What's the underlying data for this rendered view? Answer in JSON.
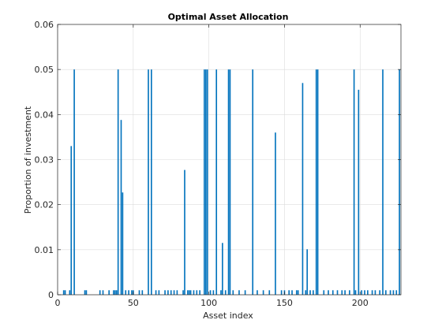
{
  "chart_data": {
    "type": "bar",
    "title": "Optimal Asset Allocation",
    "xlabel": "Asset index",
    "ylabel": "Proportion of investment",
    "xlim": [
      0,
      227
    ],
    "ylim": [
      0,
      0.06
    ],
    "xticks": [
      0,
      50,
      100,
      150,
      200
    ],
    "xtick_labels": [
      "0",
      "50",
      "100",
      "150",
      "200"
    ],
    "yticks": [
      0,
      0.01,
      0.02,
      0.03,
      0.04,
      0.05,
      0.06
    ],
    "ytick_labels": [
      "0",
      "0.01",
      "0.02",
      "0.03",
      "0.04",
      "0.05",
      "0.06"
    ],
    "grid": true,
    "bar_color": "#0072bd",
    "points": [
      {
        "x": 4,
        "y": 0.001
      },
      {
        "x": 5,
        "y": 0.001
      },
      {
        "x": 8,
        "y": 0.001
      },
      {
        "x": 9,
        "y": 0.033
      },
      {
        "x": 11,
        "y": 0.05
      },
      {
        "x": 18,
        "y": 0.001
      },
      {
        "x": 19,
        "y": 0.001
      },
      {
        "x": 28,
        "y": 0.001
      },
      {
        "x": 30,
        "y": 0.001
      },
      {
        "x": 34,
        "y": 0.001
      },
      {
        "x": 37,
        "y": 0.001
      },
      {
        "x": 38,
        "y": 0.001
      },
      {
        "x": 39,
        "y": 0.001
      },
      {
        "x": 40,
        "y": 0.05
      },
      {
        "x": 42,
        "y": 0.0388
      },
      {
        "x": 43,
        "y": 0.0227
      },
      {
        "x": 45,
        "y": 0.001
      },
      {
        "x": 47,
        "y": 0.001
      },
      {
        "x": 49,
        "y": 0.001
      },
      {
        "x": 50,
        "y": 0.001
      },
      {
        "x": 54,
        "y": 0.001
      },
      {
        "x": 56,
        "y": 0.001
      },
      {
        "x": 60,
        "y": 0.05
      },
      {
        "x": 62,
        "y": 0.05
      },
      {
        "x": 65,
        "y": 0.001
      },
      {
        "x": 67,
        "y": 0.001
      },
      {
        "x": 71,
        "y": 0.001
      },
      {
        "x": 73,
        "y": 0.001
      },
      {
        "x": 75,
        "y": 0.001
      },
      {
        "x": 77,
        "y": 0.001
      },
      {
        "x": 79,
        "y": 0.001
      },
      {
        "x": 83,
        "y": 0.001
      },
      {
        "x": 84,
        "y": 0.0277
      },
      {
        "x": 86,
        "y": 0.001
      },
      {
        "x": 87,
        "y": 0.001
      },
      {
        "x": 88,
        "y": 0.001
      },
      {
        "x": 90,
        "y": 0.001
      },
      {
        "x": 92,
        "y": 0.001
      },
      {
        "x": 94,
        "y": 0.001
      },
      {
        "x": 97,
        "y": 0.05
      },
      {
        "x": 98,
        "y": 0.05
      },
      {
        "x": 99,
        "y": 0.05
      },
      {
        "x": 101,
        "y": 0.001
      },
      {
        "x": 103,
        "y": 0.001
      },
      {
        "x": 105,
        "y": 0.05
      },
      {
        "x": 108,
        "y": 0.001
      },
      {
        "x": 109,
        "y": 0.0115
      },
      {
        "x": 111,
        "y": 0.001
      },
      {
        "x": 113,
        "y": 0.05
      },
      {
        "x": 114,
        "y": 0.05
      },
      {
        "x": 116,
        "y": 0.001
      },
      {
        "x": 120,
        "y": 0.001
      },
      {
        "x": 124,
        "y": 0.001
      },
      {
        "x": 129,
        "y": 0.05
      },
      {
        "x": 132,
        "y": 0.001
      },
      {
        "x": 136,
        "y": 0.001
      },
      {
        "x": 140,
        "y": 0.001
      },
      {
        "x": 144,
        "y": 0.036
      },
      {
        "x": 148,
        "y": 0.001
      },
      {
        "x": 150,
        "y": 0.001
      },
      {
        "x": 153,
        "y": 0.001
      },
      {
        "x": 155,
        "y": 0.001
      },
      {
        "x": 158,
        "y": 0.001
      },
      {
        "x": 159,
        "y": 0.001
      },
      {
        "x": 162,
        "y": 0.047
      },
      {
        "x": 164,
        "y": 0.001
      },
      {
        "x": 165,
        "y": 0.0101
      },
      {
        "x": 167,
        "y": 0.001
      },
      {
        "x": 169,
        "y": 0.001
      },
      {
        "x": 171,
        "y": 0.05
      },
      {
        "x": 172,
        "y": 0.05
      },
      {
        "x": 176,
        "y": 0.001
      },
      {
        "x": 179,
        "y": 0.001
      },
      {
        "x": 182,
        "y": 0.001
      },
      {
        "x": 185,
        "y": 0.001
      },
      {
        "x": 188,
        "y": 0.001
      },
      {
        "x": 190,
        "y": 0.001
      },
      {
        "x": 193,
        "y": 0.001
      },
      {
        "x": 196,
        "y": 0.05
      },
      {
        "x": 197,
        "y": 0.001
      },
      {
        "x": 199,
        "y": 0.0455
      },
      {
        "x": 201,
        "y": 0.001
      },
      {
        "x": 203,
        "y": 0.001
      },
      {
        "x": 205,
        "y": 0.001
      },
      {
        "x": 208,
        "y": 0.001
      },
      {
        "x": 210,
        "y": 0.001
      },
      {
        "x": 213,
        "y": 0.001
      },
      {
        "x": 215,
        "y": 0.05
      },
      {
        "x": 217,
        "y": 0.001
      },
      {
        "x": 220,
        "y": 0.001
      },
      {
        "x": 222,
        "y": 0.001
      },
      {
        "x": 224,
        "y": 0.001
      },
      {
        "x": 226,
        "y": 0.05
      }
    ]
  }
}
